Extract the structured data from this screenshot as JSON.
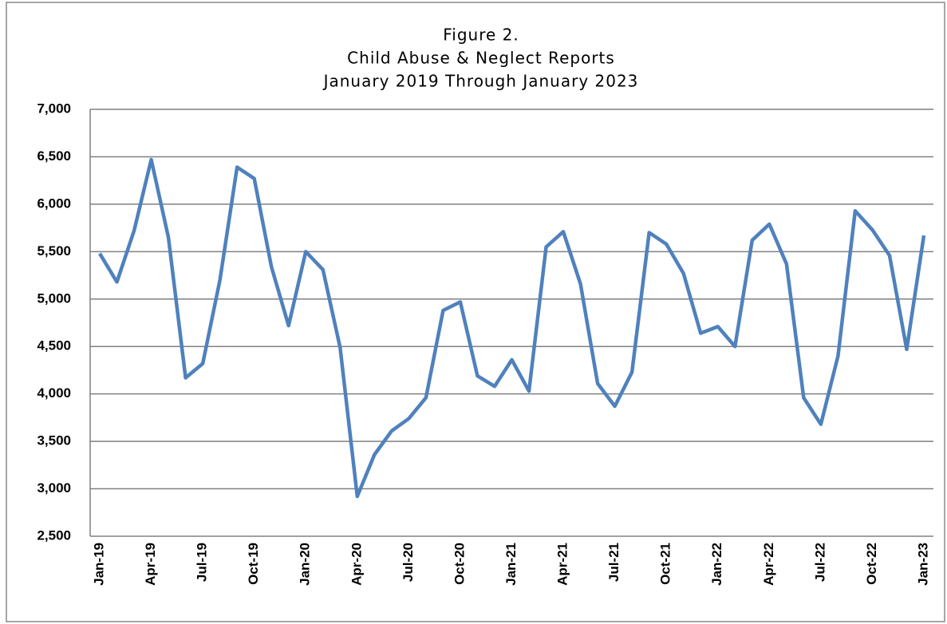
{
  "chart_data": {
    "type": "line",
    "title": [
      "Figure 2.",
      "Child Abuse & Neglect Reports",
      "January 2019 Through January 2023"
    ],
    "categories": [
      "Jan-19",
      null,
      null,
      "Apr-19",
      null,
      null,
      "Jul-19",
      null,
      null,
      "Oct-19",
      null,
      null,
      "Jan-20",
      null,
      null,
      "Apr-20",
      null,
      null,
      "Jul-20",
      null,
      null,
      "Oct-20",
      null,
      null,
      "Jan-21",
      null,
      null,
      "Apr-21",
      null,
      null,
      "Jul-21",
      null,
      null,
      "Oct-21",
      null,
      null,
      "Jan-22",
      null,
      null,
      "Apr-22",
      null,
      null,
      "Jul-22",
      null,
      null,
      "Oct-22",
      null,
      null,
      "Jan-23"
    ],
    "series": [
      {
        "color": "#4f81bd",
        "values": [
          5480,
          5180,
          5720,
          6470,
          5650,
          4170,
          4320,
          5200,
          6390,
          6270,
          5340,
          4720,
          5500,
          5310,
          4490,
          2920,
          3360,
          3610,
          3740,
          3960,
          4880,
          4970,
          4190,
          4080,
          4360,
          4030,
          5550,
          5710,
          5160,
          4110,
          3870,
          4230,
          5700,
          5580,
          5270,
          4640,
          4710,
          4500,
          5620,
          5790,
          5370,
          3960,
          3680,
          4400,
          5930,
          5730,
          5460,
          4470,
          5670
        ]
      }
    ],
    "ylim": [
      2500,
      7000
    ],
    "yticks": [
      {
        "value": 2500,
        "label": "2,500"
      },
      {
        "value": 3000,
        "label": "3,000"
      },
      {
        "value": 3500,
        "label": "3,500"
      },
      {
        "value": 4000,
        "label": "4,000"
      },
      {
        "value": 4500,
        "label": "4,500"
      },
      {
        "value": 5000,
        "label": "5,000"
      },
      {
        "value": 5500,
        "label": "5,500"
      },
      {
        "value": 6000,
        "label": "6,000"
      },
      {
        "value": 6500,
        "label": "6,500"
      },
      {
        "value": 7000,
        "label": "7,000"
      }
    ],
    "grid": true
  }
}
